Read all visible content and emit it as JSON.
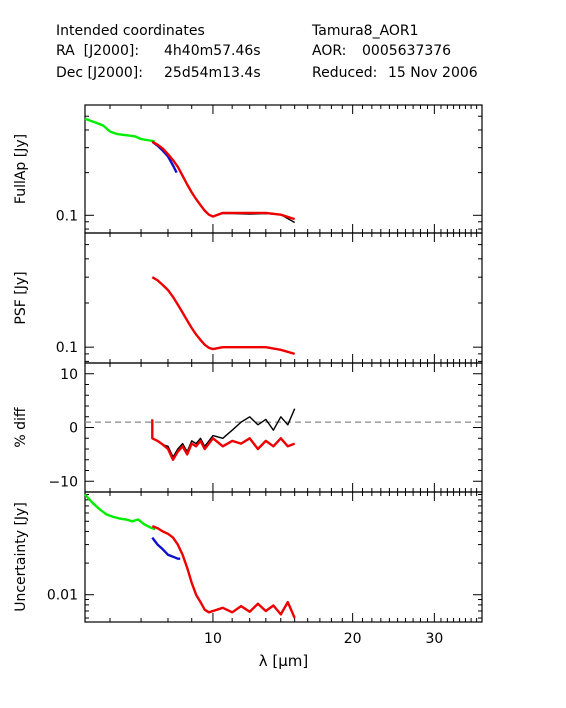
{
  "header": {
    "left": {
      "line1": "Intended coordinates",
      "ra_label": "RA  [J2000]:",
      "ra_value": "4h40m57.46s",
      "dec_label": "Dec [J2000]:",
      "dec_value": "25d54m13.4s"
    },
    "right": {
      "target": "Tamura8_AOR1",
      "aor_label": "AOR:",
      "aor_value": "0005637376",
      "reduced_label": "Reduced:",
      "reduced_value": "15 Nov 2006"
    }
  },
  "colors": {
    "green": "#00ee00",
    "blue": "#1010cc",
    "red": "#ee0000",
    "black": "#000000",
    "dashed": "#888888"
  },
  "chart_data": [
    {
      "type": "line",
      "ylabel": "FullAp [Jy]",
      "yscale": "log",
      "ylim": [
        0.075,
        0.6
      ],
      "yticks": [
        {
          "value": 0.1,
          "label": "0.1"
        }
      ],
      "xlim": [
        5.3,
        38
      ],
      "series": [
        {
          "color": "green",
          "x": [
            5.3,
            5.6,
            5.8,
            6.0,
            6.2,
            6.4,
            6.6,
            6.8,
            7.0,
            7.2,
            7.4,
            7.5
          ],
          "y": [
            0.48,
            0.45,
            0.43,
            0.39,
            0.375,
            0.37,
            0.365,
            0.36,
            0.345,
            0.34,
            0.335,
            0.33
          ]
        },
        {
          "color": "blue",
          "x": [
            7.4,
            7.6,
            7.8,
            8.0,
            8.2,
            8.35
          ],
          "y": [
            0.33,
            0.31,
            0.285,
            0.26,
            0.225,
            0.2
          ]
        },
        {
          "color": "black",
          "x": [
            7.4,
            7.6,
            7.8,
            8.0,
            8.2,
            8.4,
            8.6,
            8.8,
            9.0,
            9.2,
            9.4,
            9.6,
            9.8,
            10.0,
            10.5,
            11.0,
            12.0,
            13.0,
            14.0,
            15.0
          ],
          "y": [
            0.33,
            0.315,
            0.295,
            0.27,
            0.245,
            0.22,
            0.19,
            0.165,
            0.145,
            0.13,
            0.118,
            0.108,
            0.101,
            0.098,
            0.103,
            0.103,
            0.102,
            0.103,
            0.101,
            0.089
          ]
        },
        {
          "color": "red",
          "x": [
            7.4,
            7.6,
            7.8,
            8.0,
            8.2,
            8.4,
            8.6,
            8.8,
            9.0,
            9.2,
            9.4,
            9.6,
            9.8,
            10.0,
            10.5,
            11.0,
            12.0,
            13.0,
            14.0,
            15.0
          ],
          "y": [
            0.33,
            0.315,
            0.295,
            0.27,
            0.245,
            0.22,
            0.19,
            0.165,
            0.145,
            0.13,
            0.118,
            0.108,
            0.101,
            0.098,
            0.104,
            0.104,
            0.104,
            0.104,
            0.101,
            0.094
          ]
        }
      ]
    },
    {
      "type": "line",
      "ylabel": "PSF [Jy]",
      "yscale": "log",
      "ylim": [
        0.078,
        0.6
      ],
      "yticks": [
        {
          "value": 0.1,
          "label": "0.1"
        }
      ],
      "xlim": [
        5.3,
        38
      ],
      "series": [
        {
          "color": "red",
          "x": [
            7.4,
            7.6,
            7.8,
            8.0,
            8.2,
            8.4,
            8.6,
            8.8,
            9.0,
            9.2,
            9.4,
            9.6,
            9.8,
            10.0,
            10.5,
            11.0,
            12.0,
            13.0,
            14.0,
            15.0
          ],
          "y": [
            0.3,
            0.285,
            0.265,
            0.245,
            0.22,
            0.195,
            0.172,
            0.152,
            0.135,
            0.122,
            0.112,
            0.104,
            0.099,
            0.097,
            0.1,
            0.1,
            0.1,
            0.1,
            0.096,
            0.09
          ]
        }
      ]
    },
    {
      "type": "line",
      "ylabel": "% diff",
      "yscale": "linear",
      "ylim": [
        -12,
        12
      ],
      "yticks": [
        {
          "value": 10,
          "label": "10"
        },
        {
          "value": 0,
          "label": "0"
        },
        {
          "value": -10,
          "label": "−10"
        }
      ],
      "reference_line": 1,
      "xlim": [
        5.3,
        38
      ],
      "series": [
        {
          "color": "black",
          "x": [
            7.4,
            7.4,
            7.6,
            7.8,
            8.0,
            8.2,
            8.4,
            8.6,
            8.8,
            9.0,
            9.2,
            9.4,
            9.6,
            9.8,
            10.0,
            10.5,
            11.0,
            11.5,
            12.0,
            12.5,
            13.0,
            13.5,
            14.0,
            14.5,
            15.0
          ],
          "y": [
            1.5,
            -2.0,
            -2.5,
            -3.2,
            -3.5,
            -5.5,
            -4.0,
            -3.0,
            -4.5,
            -2.5,
            -3.0,
            -2.0,
            -3.5,
            -2.5,
            -1.5,
            -2.0,
            -0.5,
            1.0,
            2.0,
            0.5,
            1.5,
            -0.5,
            2.0,
            0.5,
            3.5
          ]
        },
        {
          "color": "red",
          "x": [
            7.4,
            7.4,
            7.6,
            7.8,
            8.0,
            8.2,
            8.4,
            8.6,
            8.8,
            9.0,
            9.2,
            9.4,
            9.6,
            9.8,
            10.0,
            10.5,
            11.0,
            11.5,
            12.0,
            12.5,
            13.0,
            13.5,
            14.0,
            14.5,
            15.0
          ],
          "y": [
            1.5,
            -2.0,
            -2.5,
            -3.2,
            -4.0,
            -6.0,
            -4.5,
            -3.5,
            -5.0,
            -3.0,
            -3.5,
            -2.5,
            -4.0,
            -3.0,
            -2.0,
            -3.5,
            -2.5,
            -3.0,
            -2.0,
            -4.0,
            -2.5,
            -3.5,
            -2.0,
            -3.5,
            -3.0
          ]
        }
      ]
    },
    {
      "type": "line",
      "ylabel": "Uncertainty [Jy]",
      "yscale": "log",
      "ylim": [
        0.0055,
        0.095
      ],
      "yticks": [
        {
          "value": 0.01,
          "label": "0.01"
        }
      ],
      "xlabel": "λ [μm]",
      "xscale": "log",
      "xlim": [
        5.3,
        38
      ],
      "xticks": [
        {
          "value": 10,
          "label": "10"
        },
        {
          "value": 20,
          "label": "20"
        },
        {
          "value": 30,
          "label": "30"
        }
      ],
      "series": [
        {
          "color": "green",
          "x": [
            5.3,
            5.5,
            5.7,
            5.9,
            6.1,
            6.3,
            6.5,
            6.7,
            6.9,
            7.1,
            7.3,
            7.5
          ],
          "y": [
            0.09,
            0.075,
            0.065,
            0.058,
            0.055,
            0.053,
            0.052,
            0.05,
            0.052,
            0.047,
            0.044,
            0.042
          ]
        },
        {
          "color": "blue",
          "x": [
            7.4,
            7.6,
            7.8,
            8.0,
            8.2,
            8.4,
            8.5
          ],
          "y": [
            0.035,
            0.03,
            0.027,
            0.024,
            0.023,
            0.022,
            0.022
          ]
        },
        {
          "color": "red",
          "x": [
            7.4,
            7.6,
            7.8,
            8.0,
            8.2,
            8.4,
            8.6,
            8.8,
            9.0,
            9.2,
            9.4,
            9.6,
            9.8,
            10.0,
            10.5,
            11.0,
            11.5,
            12.0,
            12.5,
            13.0,
            13.5,
            14.0,
            14.5,
            15.0
          ],
          "y": [
            0.045,
            0.043,
            0.04,
            0.038,
            0.035,
            0.03,
            0.024,
            0.018,
            0.013,
            0.01,
            0.0085,
            0.0072,
            0.0068,
            0.007,
            0.0075,
            0.0068,
            0.0078,
            0.0069,
            0.0082,
            0.007,
            0.0079,
            0.0065,
            0.0085,
            0.006
          ]
        }
      ]
    }
  ]
}
